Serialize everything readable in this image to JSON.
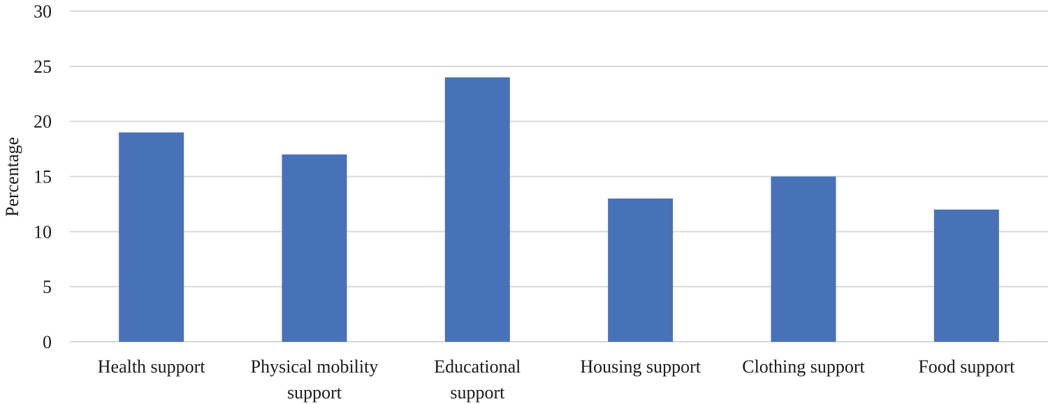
{
  "chart_data": {
    "type": "bar",
    "title": "",
    "xlabel": "",
    "ylabel": "Percentage",
    "ylim": [
      0,
      30
    ],
    "yticks": [
      0,
      5,
      10,
      15,
      20,
      25,
      30
    ],
    "categories": [
      [
        "Health support"
      ],
      [
        "Physical mobility",
        "support"
      ],
      [
        "Educational",
        "support"
      ],
      [
        "Housing support"
      ],
      [
        "Clothing support"
      ],
      [
        "Food support"
      ]
    ],
    "values": [
      19,
      17,
      24,
      13,
      15,
      12
    ],
    "grid": true,
    "legend": "none",
    "colors": {
      "bar": "#4872b8",
      "grid": "#d9d9d9",
      "text": "#1a1a1a"
    }
  }
}
